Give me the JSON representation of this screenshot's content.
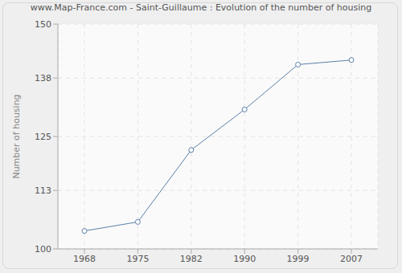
{
  "chart_data": {
    "type": "line",
    "title": "www.Map-France.com - Saint-Guillaume : Evolution of the number of housing",
    "y_label": "Number of housing",
    "categories": [
      "1968",
      "1975",
      "1982",
      "1990",
      "1999",
      "2007"
    ],
    "values": [
      104,
      106,
      122,
      131,
      141,
      142
    ],
    "color": "#5b7fa8",
    "marker": "circle",
    "ylim": [
      100,
      150
    ],
    "yticks": [
      100,
      113,
      125,
      138,
      150
    ],
    "grid": true
  }
}
